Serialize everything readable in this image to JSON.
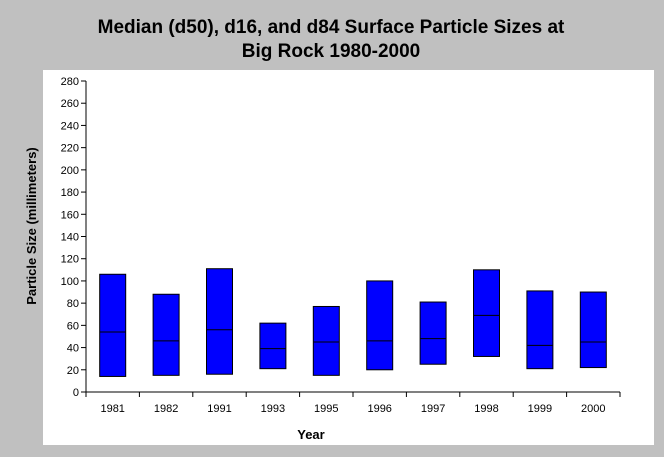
{
  "chart_data": {
    "type": "box",
    "title_lines": [
      "Median (d50), d16, and d84 Surface Particle Sizes at",
      "Big Rock 1980-2000"
    ],
    "xlabel": "Year",
    "ylabel": "Particle Size (millimeters)",
    "ylim": [
      0,
      280
    ],
    "yticks": [
      0,
      20,
      40,
      60,
      80,
      100,
      120,
      140,
      160,
      180,
      200,
      220,
      240,
      260,
      280
    ],
    "categories": [
      "1981",
      "1982",
      "1991",
      "1993",
      "1995",
      "1996",
      "1997",
      "1998",
      "1999",
      "2000"
    ],
    "series": [
      {
        "key": "d16",
        "values": [
          14,
          15,
          16,
          21,
          15,
          20,
          25,
          32,
          21,
          22
        ]
      },
      {
        "key": "d50",
        "values": [
          54,
          46,
          56,
          39,
          45,
          46,
          48,
          69,
          42,
          45
        ]
      },
      {
        "key": "d84",
        "values": [
          106,
          88,
          111,
          62,
          77,
          100,
          81,
          110,
          91,
          90
        ]
      }
    ],
    "grid": false,
    "legend": "none",
    "colors": {
      "box_fill": "#0000ff",
      "box_stroke": "#000000",
      "background": "#c0c0c0",
      "plot_background": "#ffffff"
    }
  }
}
